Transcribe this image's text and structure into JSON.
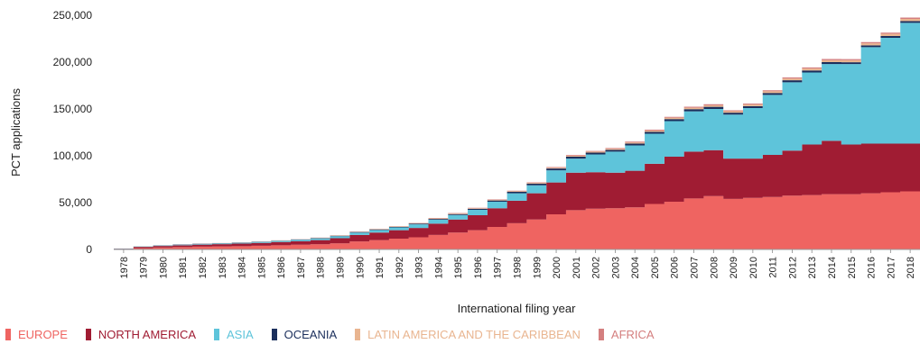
{
  "chart_data": {
    "type": "area",
    "step": true,
    "stacked": true,
    "title": "",
    "xlabel": "International filing year",
    "ylabel": "PCT applications",
    "ylim": [
      0,
      250000
    ],
    "yticks": [
      0,
      50000,
      100000,
      150000,
      200000,
      250000
    ],
    "ytick_labels": [
      "0",
      "50,000",
      "100,000",
      "150,000",
      "200,000",
      "250,000"
    ],
    "x": [
      "1978",
      "1979",
      "1980",
      "1981",
      "1982",
      "1983",
      "1984",
      "1985",
      "1986",
      "1987",
      "1988",
      "1989",
      "1990",
      "1991",
      "1992",
      "1993",
      "1994",
      "1995",
      "1996",
      "1997",
      "1998",
      "1999",
      "2000",
      "2001",
      "2002",
      "2003",
      "2004",
      "2005",
      "2006",
      "2007",
      "2008",
      "2009",
      "2010",
      "2011",
      "2012",
      "2013",
      "2014",
      "2015",
      "2016",
      "2017",
      "2018"
    ],
    "grid": false,
    "legend_position": "bottom",
    "series": [
      {
        "name": "EUROPE",
        "color": "#ef6461",
        "values": [
          300,
          1500,
          2000,
          2500,
          3000,
          3200,
          3500,
          4000,
          4500,
          5000,
          5500,
          6500,
          8500,
          10000,
          11500,
          13000,
          15500,
          18000,
          20500,
          24000,
          28000,
          32000,
          37500,
          42000,
          43500,
          44000,
          45000,
          48500,
          51000,
          54500,
          57000,
          54000,
          55000,
          56000,
          57500,
          58000,
          59000,
          59000,
          60000,
          61000,
          62000
        ]
      },
      {
        "name": "NORTH AMERICA",
        "color": "#a01c33",
        "values": [
          400,
          1300,
          1700,
          2000,
          2200,
          2400,
          2700,
          3000,
          3400,
          3800,
          4500,
          5500,
          7000,
          8000,
          9000,
          10000,
          12000,
          14000,
          16000,
          20000,
          24000,
          28000,
          34000,
          40000,
          39000,
          38000,
          39000,
          43000,
          48000,
          50000,
          49000,
          43000,
          42000,
          45000,
          48000,
          54000,
          57000,
          53000,
          53000,
          52000,
          51000
        ]
      },
      {
        "name": "ASIA",
        "color": "#5ec4da",
        "values": [
          200,
          400,
          500,
          600,
          700,
          800,
          900,
          1000,
          1200,
          1500,
          1800,
          2200,
          2500,
          2800,
          3000,
          3800,
          4200,
          4800,
          5800,
          7000,
          8000,
          8500,
          13000,
          15000,
          19000,
          22500,
          27000,
          32000,
          38000,
          43000,
          44000,
          47000,
          54000,
          64000,
          73000,
          77000,
          82000,
          86000,
          103000,
          113000,
          129000
        ]
      },
      {
        "name": "OCEANIA",
        "color": "#1b2f5c",
        "values": [
          20,
          80,
          120,
          150,
          180,
          200,
          220,
          250,
          300,
          350,
          400,
          500,
          600,
          650,
          700,
          800,
          900,
          1000,
          1100,
          1300,
          1500,
          1700,
          1900,
          2000,
          1900,
          1900,
          2000,
          2100,
          2200,
          2300,
          2300,
          2000,
          2000,
          2100,
          2100,
          2100,
          2000,
          1900,
          1900,
          1900,
          1900
        ]
      },
      {
        "name": "LATIN AMERICA AND THE CARIBBEAN",
        "color": "#e9b590",
        "values": [
          10,
          40,
          60,
          80,
          100,
          120,
          140,
          160,
          180,
          200,
          250,
          300,
          350,
          400,
          450,
          500,
          550,
          600,
          650,
          700,
          750,
          800,
          900,
          1000,
          1000,
          1100,
          1200,
          1300,
          1400,
          1500,
          1600,
          1600,
          1700,
          1800,
          1900,
          2000,
          2100,
          2100,
          2200,
          2300,
          2300
        ]
      },
      {
        "name": "AFRICA",
        "color": "#d47f7f",
        "values": [
          10,
          30,
          50,
          60,
          70,
          80,
          90,
          100,
          110,
          120,
          150,
          180,
          200,
          220,
          250,
          300,
          350,
          400,
          450,
          500,
          550,
          600,
          700,
          800,
          800,
          850,
          900,
          950,
          1000,
          1050,
          1100,
          1000,
          1050,
          1100,
          1150,
          1200,
          1250,
          1250,
          1300,
          1300,
          1350
        ]
      }
    ]
  }
}
